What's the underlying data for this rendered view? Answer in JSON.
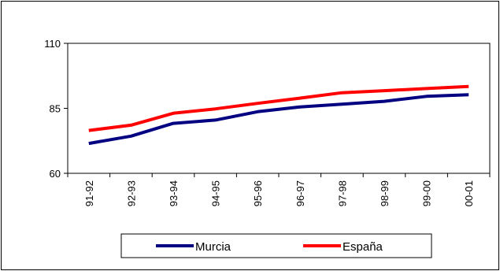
{
  "chart_data": {
    "type": "line",
    "categories": [
      "91-92",
      "92-93",
      "93-94",
      "94-95",
      "95-96",
      "96-97",
      "97-98",
      "98-99",
      "99-00",
      "00-01"
    ],
    "series": [
      {
        "name": "Murcia",
        "color": "#000080",
        "values": [
          71.5,
          74.3,
          79.2,
          80.5,
          83.7,
          85.5,
          86.6,
          87.7,
          89.6,
          90.2
        ]
      },
      {
        "name": "España",
        "color": "#ff0000",
        "values": [
          76.5,
          78.5,
          83.1,
          84.8,
          86.9,
          88.9,
          91.0,
          91.8,
          92.6,
          93.4
        ]
      }
    ],
    "ylim": [
      60,
      110
    ],
    "yticks": [
      "60",
      "85",
      "110"
    ],
    "grid": false,
    "legend": "bottom"
  }
}
